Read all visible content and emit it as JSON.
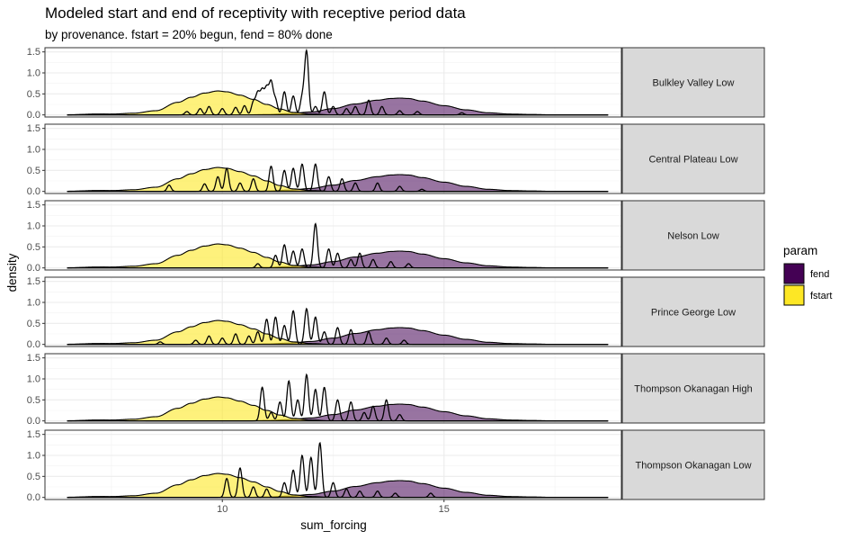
{
  "chart_data": {
    "type": "area",
    "title": "Modeled start and end of receptivity with receptive period data",
    "subtitle": "by provenance. fstart = 20% begun, fend = 80% done",
    "xlabel": "sum_forcing",
    "ylabel": "density",
    "xlim": [
      6.0,
      19.0
    ],
    "ylim": [
      -0.05,
      1.6
    ],
    "x_ticks": [
      10,
      15
    ],
    "y_ticks": [
      0.0,
      0.5,
      1.0,
      1.5
    ],
    "x_tick_labels": [
      "10",
      "15"
    ],
    "y_tick_labels": [
      "0.0",
      "0.5",
      "1.0",
      "1.5"
    ],
    "grid": true,
    "legend": {
      "title": "param",
      "position": "right",
      "items": [
        {
          "label": "fend",
          "color": "#440154"
        },
        {
          "label": "fstart",
          "color": "#FDE725"
        }
      ]
    },
    "series_styles": {
      "fstart": {
        "fill": "#FDE725",
        "alpha": 0.6
      },
      "fend": {
        "fill": "#440154",
        "alpha": 0.55
      },
      "receptive_data": {
        "stroke": "#000000"
      }
    },
    "model_curves": {
      "fstart": [
        [
          6.5,
          0.0
        ],
        [
          7.0,
          0.01
        ],
        [
          7.5,
          0.02
        ],
        [
          8.0,
          0.04
        ],
        [
          8.5,
          0.1
        ],
        [
          9.0,
          0.3
        ],
        [
          9.3,
          0.42
        ],
        [
          9.6,
          0.52
        ],
        [
          9.9,
          0.57
        ],
        [
          10.1,
          0.55
        ],
        [
          10.4,
          0.47
        ],
        [
          10.7,
          0.37
        ],
        [
          11.0,
          0.25
        ],
        [
          11.3,
          0.14
        ],
        [
          11.6,
          0.06
        ],
        [
          12.0,
          0.02
        ],
        [
          12.5,
          0.0
        ],
        [
          13.0,
          0.0
        ]
      ],
      "fend": [
        [
          10.5,
          0.0
        ],
        [
          11.0,
          0.01
        ],
        [
          11.5,
          0.03
        ],
        [
          12.0,
          0.07
        ],
        [
          12.5,
          0.15
        ],
        [
          13.0,
          0.26
        ],
        [
          13.5,
          0.35
        ],
        [
          13.8,
          0.39
        ],
        [
          14.0,
          0.4
        ],
        [
          14.2,
          0.39
        ],
        [
          14.5,
          0.33
        ],
        [
          15.0,
          0.22
        ],
        [
          15.5,
          0.12
        ],
        [
          16.0,
          0.05
        ],
        [
          16.5,
          0.02
        ],
        [
          17.0,
          0.01
        ],
        [
          17.5,
          0.0
        ],
        [
          18.0,
          0.0
        ]
      ]
    },
    "panels": [
      {
        "label": "Bulkley Valley Low",
        "receptive_peaks": [
          [
            9.2,
            0.08
          ],
          [
            9.5,
            0.15
          ],
          [
            9.7,
            0.2
          ],
          [
            10.0,
            0.15
          ],
          [
            10.3,
            0.18
          ],
          [
            10.5,
            0.22
          ],
          [
            10.7,
            0.3
          ],
          [
            10.8,
            0.5
          ],
          [
            10.9,
            0.55
          ],
          [
            11.0,
            0.6
          ],
          [
            11.1,
            0.75
          ],
          [
            11.2,
            0.35
          ],
          [
            11.4,
            0.55
          ],
          [
            11.6,
            0.45
          ],
          [
            11.8,
            0.4
          ],
          [
            11.9,
            1.5
          ],
          [
            12.1,
            0.2
          ],
          [
            12.3,
            0.55
          ],
          [
            12.5,
            0.2
          ],
          [
            12.8,
            0.15
          ],
          [
            13.0,
            0.2
          ],
          [
            13.3,
            0.35
          ],
          [
            13.6,
            0.2
          ],
          [
            14.0,
            0.1
          ],
          [
            14.4,
            0.08
          ],
          [
            15.4,
            0.05
          ]
        ]
      },
      {
        "label": "Central Plateau Low",
        "receptive_peaks": [
          [
            8.8,
            0.15
          ],
          [
            9.6,
            0.18
          ],
          [
            9.9,
            0.35
          ],
          [
            10.1,
            0.55
          ],
          [
            10.4,
            0.2
          ],
          [
            10.7,
            0.3
          ],
          [
            11.1,
            0.6
          ],
          [
            11.4,
            0.5
          ],
          [
            11.6,
            0.55
          ],
          [
            11.8,
            0.65
          ],
          [
            12.1,
            0.65
          ],
          [
            12.4,
            0.35
          ],
          [
            12.7,
            0.3
          ],
          [
            13.0,
            0.2
          ],
          [
            13.5,
            0.2
          ],
          [
            14.0,
            0.12
          ],
          [
            14.5,
            0.05
          ]
        ]
      },
      {
        "label": "Nelson Low",
        "receptive_peaks": [
          [
            10.8,
            0.1
          ],
          [
            11.2,
            0.3
          ],
          [
            11.4,
            0.55
          ],
          [
            11.6,
            0.4
          ],
          [
            11.8,
            0.45
          ],
          [
            12.1,
            1.05
          ],
          [
            12.4,
            0.45
          ],
          [
            12.6,
            0.35
          ],
          [
            12.9,
            0.2
          ],
          [
            13.1,
            0.35
          ],
          [
            13.4,
            0.2
          ],
          [
            13.8,
            0.15
          ],
          [
            14.2,
            0.1
          ]
        ]
      },
      {
        "label": "Prince George Low",
        "receptive_peaks": [
          [
            8.6,
            0.06
          ],
          [
            9.4,
            0.1
          ],
          [
            9.7,
            0.2
          ],
          [
            10.0,
            0.15
          ],
          [
            10.3,
            0.25
          ],
          [
            10.6,
            0.2
          ],
          [
            10.8,
            0.3
          ],
          [
            11.0,
            0.6
          ],
          [
            11.2,
            0.65
          ],
          [
            11.4,
            0.45
          ],
          [
            11.6,
            0.8
          ],
          [
            11.9,
            0.85
          ],
          [
            12.1,
            0.65
          ],
          [
            12.3,
            0.3
          ],
          [
            12.6,
            0.4
          ],
          [
            12.9,
            0.35
          ],
          [
            13.3,
            0.3
          ],
          [
            13.7,
            0.15
          ],
          [
            14.1,
            0.1
          ]
        ]
      },
      {
        "label": "Thompson Okanagan High",
        "receptive_peaks": [
          [
            10.9,
            0.8
          ],
          [
            11.1,
            0.2
          ],
          [
            11.3,
            0.45
          ],
          [
            11.5,
            0.95
          ],
          [
            11.7,
            0.5
          ],
          [
            11.9,
            1.1
          ],
          [
            12.1,
            0.75
          ],
          [
            12.3,
            0.8
          ],
          [
            12.6,
            0.5
          ],
          [
            12.9,
            0.45
          ],
          [
            13.2,
            0.2
          ],
          [
            13.4,
            0.35
          ],
          [
            13.7,
            0.5
          ],
          [
            14.0,
            0.15
          ]
        ]
      },
      {
        "label": "Thompson Okanagan Low",
        "receptive_peaks": [
          [
            10.1,
            0.45
          ],
          [
            10.4,
            0.7
          ],
          [
            10.7,
            0.25
          ],
          [
            11.0,
            0.2
          ],
          [
            11.4,
            0.35
          ],
          [
            11.6,
            0.65
          ],
          [
            11.8,
            1.0
          ],
          [
            12.0,
            0.95
          ],
          [
            12.2,
            1.3
          ],
          [
            12.5,
            0.35
          ],
          [
            12.8,
            0.2
          ],
          [
            13.1,
            0.15
          ],
          [
            13.5,
            0.15
          ],
          [
            13.9,
            0.1
          ],
          [
            14.7,
            0.1
          ]
        ]
      }
    ]
  }
}
